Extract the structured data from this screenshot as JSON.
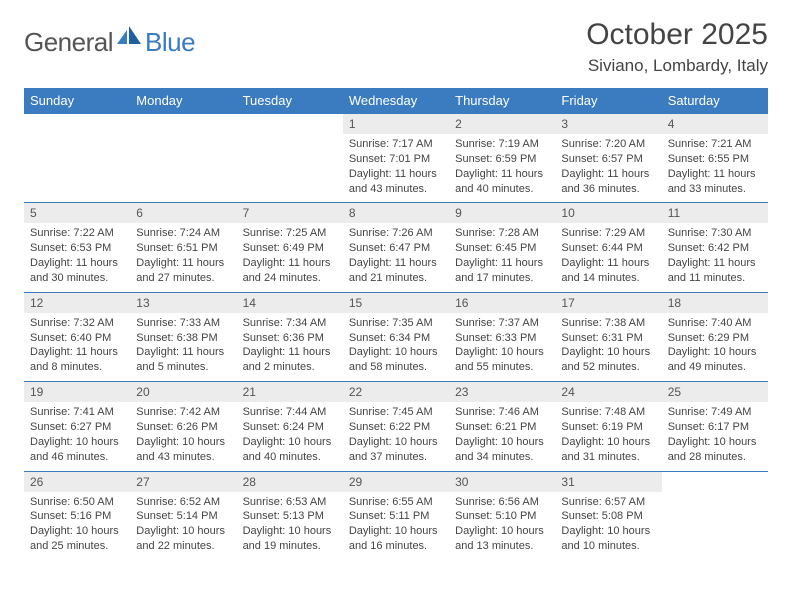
{
  "brand": {
    "word1": "General",
    "word2": "Blue"
  },
  "header": {
    "month_title": "October 2025",
    "location": "Siviano, Lombardy, Italy"
  },
  "colors": {
    "header_bg": "#3b7bbf",
    "header_text": "#ffffff",
    "daynum_bg": "#ececec",
    "rule": "#3b7bbf",
    "body_text": "#444444",
    "page_bg": "#ffffff"
  },
  "typography": {
    "title_fontsize_pt": 22,
    "location_fontsize_pt": 13,
    "weekday_fontsize_pt": 10,
    "daynum_fontsize_pt": 9,
    "body_fontsize_pt": 8
  },
  "layout": {
    "columns": 7,
    "rows": 5,
    "blank_leading_cells": 3
  },
  "weekdays": [
    "Sunday",
    "Monday",
    "Tuesday",
    "Wednesday",
    "Thursday",
    "Friday",
    "Saturday"
  ],
  "days": [
    {
      "n": "1",
      "sunrise": "Sunrise: 7:17 AM",
      "sunset": "Sunset: 7:01 PM",
      "daylight": "Daylight: 11 hours and 43 minutes."
    },
    {
      "n": "2",
      "sunrise": "Sunrise: 7:19 AM",
      "sunset": "Sunset: 6:59 PM",
      "daylight": "Daylight: 11 hours and 40 minutes."
    },
    {
      "n": "3",
      "sunrise": "Sunrise: 7:20 AM",
      "sunset": "Sunset: 6:57 PM",
      "daylight": "Daylight: 11 hours and 36 minutes."
    },
    {
      "n": "4",
      "sunrise": "Sunrise: 7:21 AM",
      "sunset": "Sunset: 6:55 PM",
      "daylight": "Daylight: 11 hours and 33 minutes."
    },
    {
      "n": "5",
      "sunrise": "Sunrise: 7:22 AM",
      "sunset": "Sunset: 6:53 PM",
      "daylight": "Daylight: 11 hours and 30 minutes."
    },
    {
      "n": "6",
      "sunrise": "Sunrise: 7:24 AM",
      "sunset": "Sunset: 6:51 PM",
      "daylight": "Daylight: 11 hours and 27 minutes."
    },
    {
      "n": "7",
      "sunrise": "Sunrise: 7:25 AM",
      "sunset": "Sunset: 6:49 PM",
      "daylight": "Daylight: 11 hours and 24 minutes."
    },
    {
      "n": "8",
      "sunrise": "Sunrise: 7:26 AM",
      "sunset": "Sunset: 6:47 PM",
      "daylight": "Daylight: 11 hours and 21 minutes."
    },
    {
      "n": "9",
      "sunrise": "Sunrise: 7:28 AM",
      "sunset": "Sunset: 6:45 PM",
      "daylight": "Daylight: 11 hours and 17 minutes."
    },
    {
      "n": "10",
      "sunrise": "Sunrise: 7:29 AM",
      "sunset": "Sunset: 6:44 PM",
      "daylight": "Daylight: 11 hours and 14 minutes."
    },
    {
      "n": "11",
      "sunrise": "Sunrise: 7:30 AM",
      "sunset": "Sunset: 6:42 PM",
      "daylight": "Daylight: 11 hours and 11 minutes."
    },
    {
      "n": "12",
      "sunrise": "Sunrise: 7:32 AM",
      "sunset": "Sunset: 6:40 PM",
      "daylight": "Daylight: 11 hours and 8 minutes."
    },
    {
      "n": "13",
      "sunrise": "Sunrise: 7:33 AM",
      "sunset": "Sunset: 6:38 PM",
      "daylight": "Daylight: 11 hours and 5 minutes."
    },
    {
      "n": "14",
      "sunrise": "Sunrise: 7:34 AM",
      "sunset": "Sunset: 6:36 PM",
      "daylight": "Daylight: 11 hours and 2 minutes."
    },
    {
      "n": "15",
      "sunrise": "Sunrise: 7:35 AM",
      "sunset": "Sunset: 6:34 PM",
      "daylight": "Daylight: 10 hours and 58 minutes."
    },
    {
      "n": "16",
      "sunrise": "Sunrise: 7:37 AM",
      "sunset": "Sunset: 6:33 PM",
      "daylight": "Daylight: 10 hours and 55 minutes."
    },
    {
      "n": "17",
      "sunrise": "Sunrise: 7:38 AM",
      "sunset": "Sunset: 6:31 PM",
      "daylight": "Daylight: 10 hours and 52 minutes."
    },
    {
      "n": "18",
      "sunrise": "Sunrise: 7:40 AM",
      "sunset": "Sunset: 6:29 PM",
      "daylight": "Daylight: 10 hours and 49 minutes."
    },
    {
      "n": "19",
      "sunrise": "Sunrise: 7:41 AM",
      "sunset": "Sunset: 6:27 PM",
      "daylight": "Daylight: 10 hours and 46 minutes."
    },
    {
      "n": "20",
      "sunrise": "Sunrise: 7:42 AM",
      "sunset": "Sunset: 6:26 PM",
      "daylight": "Daylight: 10 hours and 43 minutes."
    },
    {
      "n": "21",
      "sunrise": "Sunrise: 7:44 AM",
      "sunset": "Sunset: 6:24 PM",
      "daylight": "Daylight: 10 hours and 40 minutes."
    },
    {
      "n": "22",
      "sunrise": "Sunrise: 7:45 AM",
      "sunset": "Sunset: 6:22 PM",
      "daylight": "Daylight: 10 hours and 37 minutes."
    },
    {
      "n": "23",
      "sunrise": "Sunrise: 7:46 AM",
      "sunset": "Sunset: 6:21 PM",
      "daylight": "Daylight: 10 hours and 34 minutes."
    },
    {
      "n": "24",
      "sunrise": "Sunrise: 7:48 AM",
      "sunset": "Sunset: 6:19 PM",
      "daylight": "Daylight: 10 hours and 31 minutes."
    },
    {
      "n": "25",
      "sunrise": "Sunrise: 7:49 AM",
      "sunset": "Sunset: 6:17 PM",
      "daylight": "Daylight: 10 hours and 28 minutes."
    },
    {
      "n": "26",
      "sunrise": "Sunrise: 6:50 AM",
      "sunset": "Sunset: 5:16 PM",
      "daylight": "Daylight: 10 hours and 25 minutes."
    },
    {
      "n": "27",
      "sunrise": "Sunrise: 6:52 AM",
      "sunset": "Sunset: 5:14 PM",
      "daylight": "Daylight: 10 hours and 22 minutes."
    },
    {
      "n": "28",
      "sunrise": "Sunrise: 6:53 AM",
      "sunset": "Sunset: 5:13 PM",
      "daylight": "Daylight: 10 hours and 19 minutes."
    },
    {
      "n": "29",
      "sunrise": "Sunrise: 6:55 AM",
      "sunset": "Sunset: 5:11 PM",
      "daylight": "Daylight: 10 hours and 16 minutes."
    },
    {
      "n": "30",
      "sunrise": "Sunrise: 6:56 AM",
      "sunset": "Sunset: 5:10 PM",
      "daylight": "Daylight: 10 hours and 13 minutes."
    },
    {
      "n": "31",
      "sunrise": "Sunrise: 6:57 AM",
      "sunset": "Sunset: 5:08 PM",
      "daylight": "Daylight: 10 hours and 10 minutes."
    }
  ]
}
